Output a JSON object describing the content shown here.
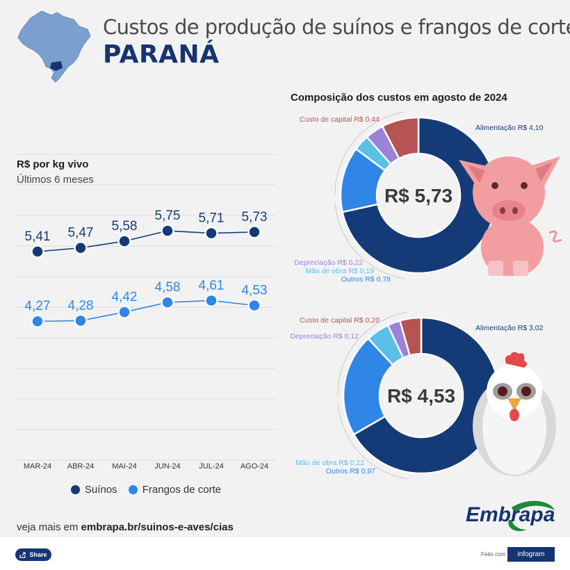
{
  "header": {
    "title": "Custos de produção de suínos e frangos de corte",
    "subtitle": "PARANÁ",
    "map_icon": "brazil-map-icon"
  },
  "colors": {
    "suinos": "#143b78",
    "frangos": "#2f86e6",
    "capital": "#b65353",
    "alimentacao": "#143b78",
    "depreciacao": "#9a82d8",
    "mao_de_obra": "#5bc0e6",
    "outros": "#2f86e6",
    "title_dark": "#163470"
  },
  "chart_data": [
    {
      "type": "line",
      "title": "R$ por kg vivo",
      "subtitle": "Últimos 6 meses",
      "categories": [
        "MAR-24",
        "ABR-24",
        "MAI-24",
        "JUN-24",
        "JUL-24",
        "AGO-24"
      ],
      "series": [
        {
          "name": "Suínos",
          "values": [
            5.41,
            5.47,
            5.58,
            5.75,
            5.71,
            5.73
          ],
          "labels": [
            "5,41",
            "5,47",
            "5,58",
            "5,75",
            "5,71",
            "5,73"
          ]
        },
        {
          "name": "Frangos de corte",
          "values": [
            4.27,
            4.28,
            4.42,
            4.58,
            4.61,
            4.53
          ],
          "labels": [
            "4,27",
            "4,28",
            "4,42",
            "4,58",
            "4,61",
            "4,53"
          ]
        }
      ],
      "ylim": [
        2.0,
        7.0
      ],
      "grid": true,
      "legend": "bottom"
    },
    {
      "type": "pie",
      "title": "Composição dos custos em agosto de 2024",
      "center_label": "R$ 5,73",
      "icon": "pig-icon",
      "slices": [
        {
          "label": "Alimentação R$ 4,10",
          "value": 4.1,
          "color_key": "alimentacao"
        },
        {
          "label": "Outros R$ 0,78",
          "value": 0.78,
          "color_key": "outros"
        },
        {
          "label": "Mão de obra R$ 0,19",
          "value": 0.19,
          "color_key": "mao_de_obra"
        },
        {
          "label": "Depreciação R$ 0,22",
          "value": 0.22,
          "color_key": "depreciacao"
        },
        {
          "label": "Custo de capital R$ 0,44",
          "value": 0.44,
          "color_key": "capital"
        }
      ]
    },
    {
      "type": "pie",
      "center_label": "R$ 4,53",
      "icon": "chicken-icon",
      "slices": [
        {
          "label": "Alimentação R$ 3,02",
          "value": 3.02,
          "color_key": "alimentacao"
        },
        {
          "label": "Outros R$ 0,97",
          "value": 0.97,
          "color_key": "outros"
        },
        {
          "label": "Mão de obra R$ 0,22",
          "value": 0.22,
          "color_key": "mao_de_obra"
        },
        {
          "label": "Depreciação R$ 0,12",
          "value": 0.12,
          "color_key": "depreciacao"
        },
        {
          "label": "Custo de capital R$ 0,20",
          "value": 0.2,
          "color_key": "capital"
        }
      ]
    }
  ],
  "footer": {
    "prefix": "veja mais em ",
    "link": "embrapa.br/suinos-e-aves/cias",
    "logo_text": "Embrapa",
    "share_label": "Share",
    "share_icon": "share-icon",
    "feito_com": "Feito com",
    "infogram": "infogram"
  }
}
